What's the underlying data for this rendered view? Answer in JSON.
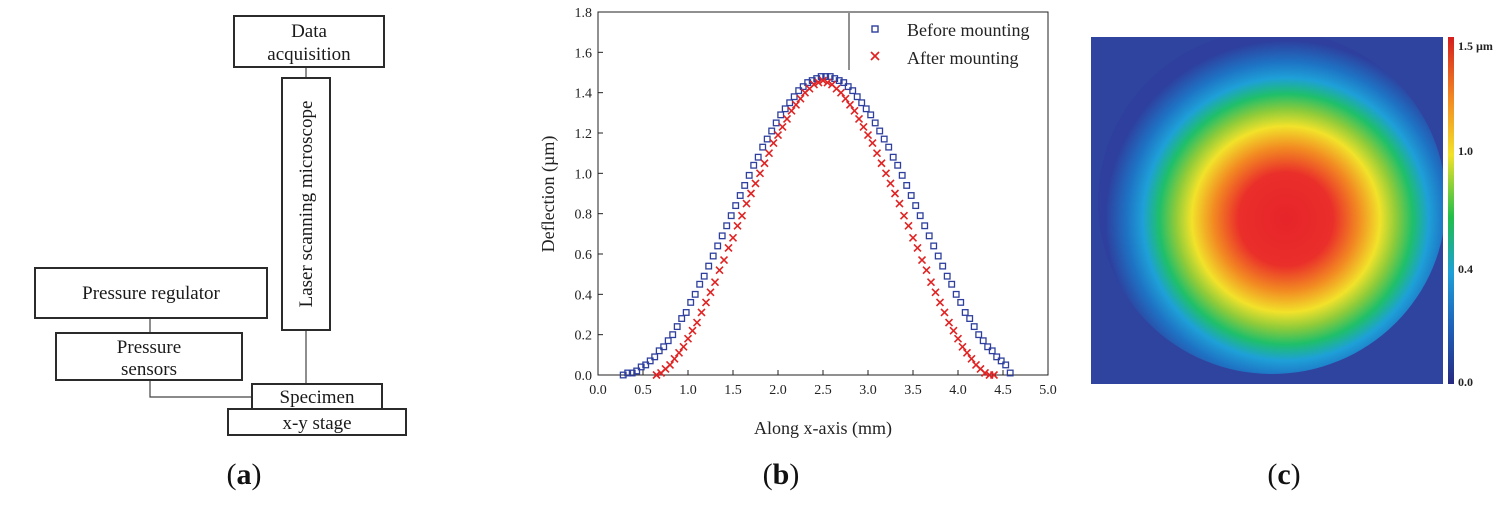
{
  "diagram": {
    "data_acquisition": [
      "Data",
      "acquisition"
    ],
    "microscope": "Laser scanning microscope",
    "pressure_regulator": "Pressure regulator",
    "pressure_sensors": [
      "Pressure",
      "sensors"
    ],
    "specimen": "Specimen",
    "stage": "x-y stage"
  },
  "panel_labels": [
    {
      "open": "(",
      "letter": "a",
      "close": ")"
    },
    {
      "open": "(",
      "letter": "b",
      "close": ")"
    },
    {
      "open": "(",
      "letter": "c",
      "close": ")"
    }
  ],
  "chart_data": [
    {
      "type": "scatter",
      "xlabel": "Along x-axis (mm)",
      "ylabel": "Deflection (µm)",
      "xlim": [
        0.0,
        5.0
      ],
      "ylim": [
        0.0,
        1.8
      ],
      "xticks": [
        "0.0",
        "0.5",
        "1.0",
        "1.5",
        "2.0",
        "2.5",
        "3.0",
        "3.5",
        "4.0",
        "4.5",
        "5.0"
      ],
      "yticks": [
        "0.0",
        "0.2",
        "0.4",
        "0.6",
        "0.8",
        "1.0",
        "1.2",
        "1.4",
        "1.6",
        "1.8"
      ],
      "legend_position": "top-right",
      "series": [
        {
          "name": "Before mounting",
          "marker": "square",
          "color": "#2e3f9e",
          "x": [
            0.28,
            0.33,
            0.38,
            0.43,
            0.48,
            0.53,
            0.58,
            0.63,
            0.68,
            0.73,
            0.78,
            0.83,
            0.88,
            0.93,
            0.98,
            1.03,
            1.08,
            1.13,
            1.18,
            1.23,
            1.28,
            1.33,
            1.38,
            1.43,
            1.48,
            1.53,
            1.58,
            1.63,
            1.68,
            1.73,
            1.78,
            1.83,
            1.88,
            1.93,
            1.98,
            2.03,
            2.08,
            2.13,
            2.18,
            2.23,
            2.28,
            2.33,
            2.38,
            2.43,
            2.48,
            2.53,
            2.58,
            2.63,
            2.68,
            2.73,
            2.78,
            2.83,
            2.88,
            2.93,
            2.98,
            3.03,
            3.08,
            3.13,
            3.18,
            3.23,
            3.28,
            3.33,
            3.38,
            3.43,
            3.48,
            3.53,
            3.58,
            3.63,
            3.68,
            3.73,
            3.78,
            3.83,
            3.88,
            3.93,
            3.98,
            4.03,
            4.08,
            4.13,
            4.18,
            4.23,
            4.28,
            4.33,
            4.38,
            4.43,
            4.48,
            4.53,
            4.58
          ],
          "y": [
            0.0,
            0.01,
            0.01,
            0.02,
            0.04,
            0.05,
            0.07,
            0.09,
            0.12,
            0.14,
            0.17,
            0.2,
            0.24,
            0.28,
            0.31,
            0.36,
            0.4,
            0.45,
            0.49,
            0.54,
            0.59,
            0.64,
            0.69,
            0.74,
            0.79,
            0.84,
            0.89,
            0.94,
            0.99,
            1.04,
            1.08,
            1.13,
            1.17,
            1.21,
            1.25,
            1.29,
            1.32,
            1.35,
            1.38,
            1.41,
            1.43,
            1.45,
            1.46,
            1.47,
            1.48,
            1.48,
            1.48,
            1.47,
            1.46,
            1.45,
            1.43,
            1.41,
            1.38,
            1.35,
            1.32,
            1.29,
            1.25,
            1.21,
            1.17,
            1.13,
            1.08,
            1.04,
            0.99,
            0.94,
            0.89,
            0.84,
            0.79,
            0.74,
            0.69,
            0.64,
            0.59,
            0.54,
            0.49,
            0.45,
            0.4,
            0.36,
            0.31,
            0.28,
            0.24,
            0.2,
            0.17,
            0.14,
            0.12,
            0.09,
            0.07,
            0.05,
            0.01
          ]
        },
        {
          "name": "After mounting",
          "marker": "cross",
          "color": "#e02424",
          "x": [
            0.65,
            0.7,
            0.75,
            0.8,
            0.85,
            0.9,
            0.95,
            1.0,
            1.05,
            1.1,
            1.15,
            1.2,
            1.25,
            1.3,
            1.35,
            1.4,
            1.45,
            1.5,
            1.55,
            1.6,
            1.65,
            1.7,
            1.75,
            1.8,
            1.85,
            1.9,
            1.95,
            2.0,
            2.05,
            2.1,
            2.15,
            2.2,
            2.25,
            2.3,
            2.35,
            2.4,
            2.45,
            2.5,
            2.55,
            2.6,
            2.65,
            2.7,
            2.75,
            2.8,
            2.85,
            2.9,
            2.95,
            3.0,
            3.05,
            3.1,
            3.15,
            3.2,
            3.25,
            3.3,
            3.35,
            3.4,
            3.45,
            3.5,
            3.55,
            3.6,
            3.65,
            3.7,
            3.75,
            3.8,
            3.85,
            3.9,
            3.95,
            4.0,
            4.05,
            4.1,
            4.15,
            4.2,
            4.25,
            4.3,
            4.35,
            4.4
          ],
          "y": [
            0.0,
            0.01,
            0.03,
            0.05,
            0.08,
            0.11,
            0.14,
            0.18,
            0.22,
            0.26,
            0.31,
            0.36,
            0.41,
            0.46,
            0.52,
            0.57,
            0.63,
            0.68,
            0.74,
            0.79,
            0.85,
            0.9,
            0.95,
            1.0,
            1.05,
            1.1,
            1.15,
            1.19,
            1.23,
            1.27,
            1.31,
            1.34,
            1.37,
            1.4,
            1.42,
            1.44,
            1.45,
            1.46,
            1.45,
            1.44,
            1.42,
            1.4,
            1.37,
            1.34,
            1.31,
            1.27,
            1.23,
            1.19,
            1.15,
            1.1,
            1.05,
            1.0,
            0.95,
            0.9,
            0.85,
            0.79,
            0.74,
            0.68,
            0.63,
            0.57,
            0.52,
            0.46,
            0.41,
            0.36,
            0.31,
            0.26,
            0.22,
            0.18,
            0.14,
            0.11,
            0.08,
            0.05,
            0.03,
            0.01,
            0.0,
            0.0
          ]
        }
      ]
    },
    {
      "type": "heatmap",
      "colorbar_labels": [
        "1.5 µm",
        "1.0",
        "0.4",
        "0.0"
      ],
      "colorbar_values": [
        1.5,
        1.0,
        0.4,
        0.0
      ],
      "colormap": [
        "#272a80",
        "#1e5fb8",
        "#1ea0d8",
        "#1fbf6a",
        "#6ac23a",
        "#f2e22a",
        "#f28a22",
        "#e6242a"
      ],
      "background": "#2e3f9e"
    }
  ]
}
